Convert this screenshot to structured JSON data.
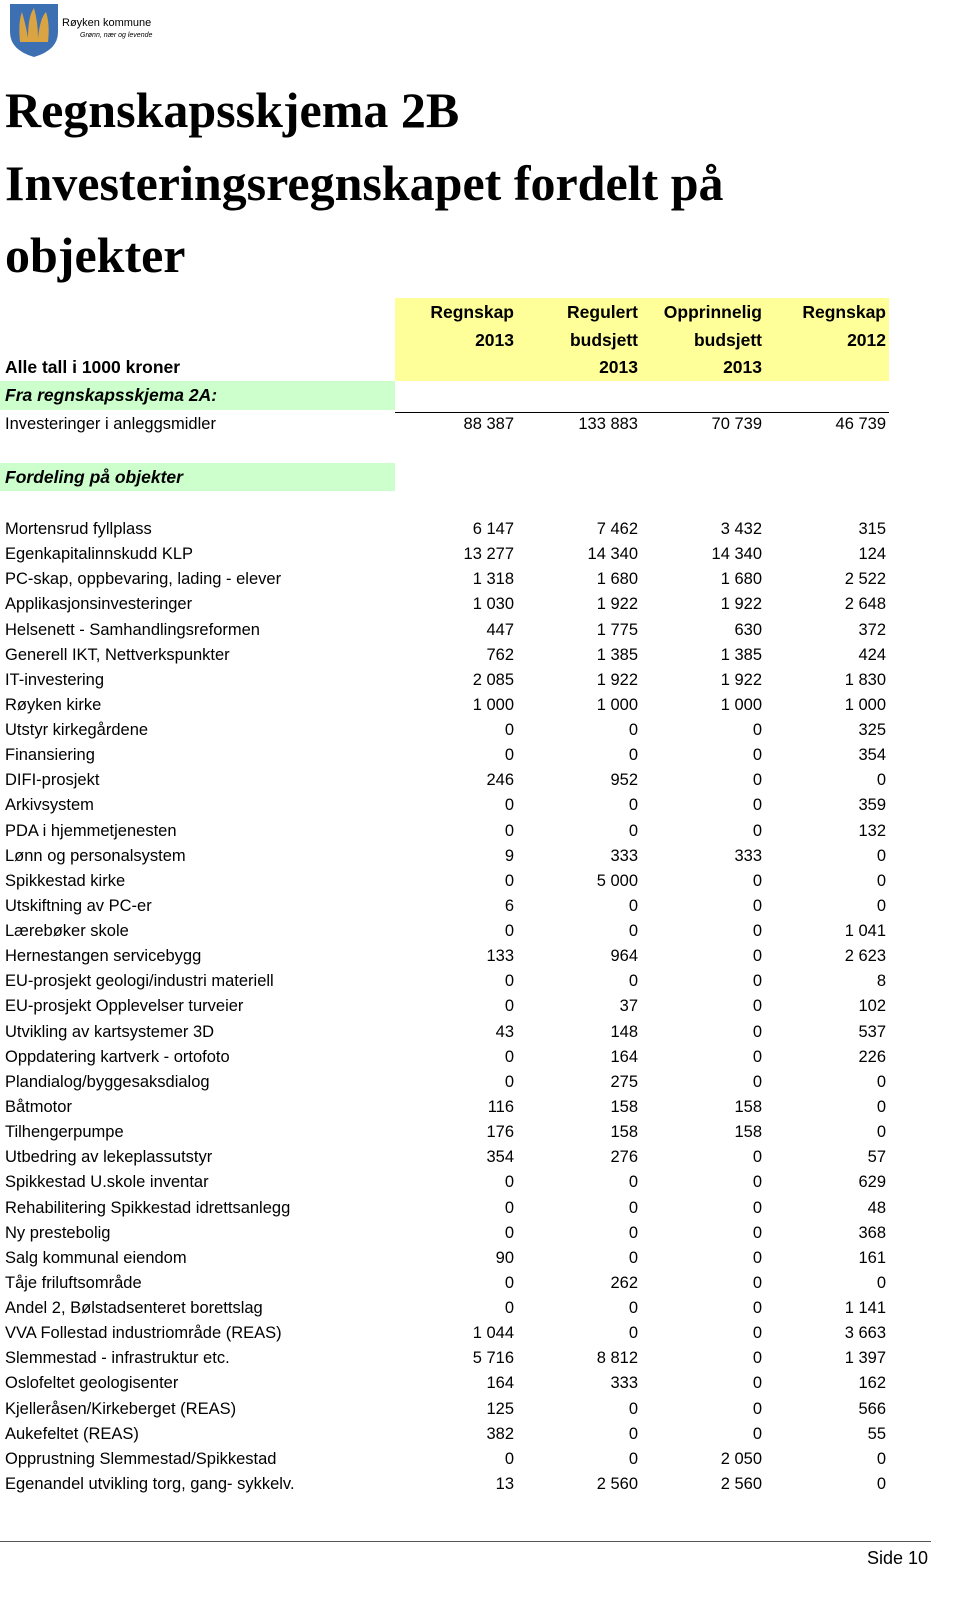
{
  "logo": {
    "name": "Røyken kommune",
    "tagline": "Grønn, nær og levende"
  },
  "title": [
    "Regnskapsskjema 2B",
    "Investeringsregnskapet fordelt på",
    "objekter"
  ],
  "table": {
    "columns": [
      [
        "Regnskap",
        "2013"
      ],
      [
        "Regulert",
        "budsjett",
        "2013"
      ],
      [
        "Opprinnelig",
        "budsjett",
        "2013"
      ],
      [
        "Regnskap",
        "2012"
      ]
    ],
    "unit_note": "Alle tall i 1000 kroner",
    "section_a": "Fra regnskapsskjema 2A:",
    "total_row": [
      "Investeringer i anleggsmidler",
      "88 387",
      "133 883",
      "70 739",
      "46 739"
    ],
    "section_b": "Fordeling på objekter",
    "rows": [
      [
        "Mortensrud fyllplass",
        "6 147",
        "7 462",
        "3 432",
        "315"
      ],
      [
        "Egenkapitalinnskudd KLP",
        "13 277",
        "14 340",
        "14 340",
        "124"
      ],
      [
        "PC-skap, oppbevaring, lading - elever",
        "1 318",
        "1 680",
        "1 680",
        "2 522"
      ],
      [
        "Applikasjonsinvesteringer",
        "1 030",
        "1 922",
        "1 922",
        "2 648"
      ],
      [
        "Helsenett - Samhandlingsreformen",
        "447",
        "1 775",
        "630",
        "372"
      ],
      [
        "Generell IKT, Nettverkspunkter",
        "762",
        "1 385",
        "1 385",
        "424"
      ],
      [
        "IT-investering",
        "2 085",
        "1 922",
        "1 922",
        "1 830"
      ],
      [
        "Røyken kirke",
        "1 000",
        "1 000",
        "1 000",
        "1 000"
      ],
      [
        "Utstyr kirkegårdene",
        "0",
        "0",
        "0",
        "325"
      ],
      [
        "Finansiering",
        "0",
        "0",
        "0",
        "354"
      ],
      [
        "DIFI-prosjekt",
        "246",
        "952",
        "0",
        "0"
      ],
      [
        "Arkivsystem",
        "0",
        "0",
        "0",
        "359"
      ],
      [
        "PDA i hjemmetjenesten",
        "0",
        "0",
        "0",
        "132"
      ],
      [
        "Lønn og personalsystem",
        "9",
        "333",
        "333",
        "0"
      ],
      [
        "Spikkestad kirke",
        "0",
        "5 000",
        "0",
        "0"
      ],
      [
        "Utskiftning av PC-er",
        "6",
        "0",
        "0",
        "0"
      ],
      [
        "Lærebøker skole",
        "0",
        "0",
        "0",
        "1 041"
      ],
      [
        "Hernestangen servicebygg",
        "133",
        "964",
        "0",
        "2 623"
      ],
      [
        "EU-prosjekt geologi/industri materiell",
        "0",
        "0",
        "0",
        "8"
      ],
      [
        "EU-prosjekt Opplevelser turveier",
        "0",
        "37",
        "0",
        "102"
      ],
      [
        "Utvikling av kartsystemer 3D",
        "43",
        "148",
        "0",
        "537"
      ],
      [
        "Oppdatering kartverk - ortofoto",
        "0",
        "164",
        "0",
        "226"
      ],
      [
        "Plandialog/byggesaksdialog",
        "0",
        "275",
        "0",
        "0"
      ],
      [
        "Båtmotor",
        "116",
        "158",
        "158",
        "0"
      ],
      [
        "Tilhengerpumpe",
        "176",
        "158",
        "158",
        "0"
      ],
      [
        "Utbedring av lekeplassutstyr",
        "354",
        "276",
        "0",
        "57"
      ],
      [
        "Spikkestad U.skole inventar",
        "0",
        "0",
        "0",
        "629"
      ],
      [
        "Rehabilitering Spikkestad idrettsanlegg",
        "0",
        "0",
        "0",
        "48"
      ],
      [
        "Ny prestebolig",
        "0",
        "0",
        "0",
        "368"
      ],
      [
        "Salg kommunal eiendom",
        "90",
        "0",
        "0",
        "161"
      ],
      [
        "Tåje friluftsområde",
        "0",
        "262",
        "0",
        "0"
      ],
      [
        "Andel 2, Bølstadsenteret borettslag",
        "0",
        "0",
        "0",
        "1 141"
      ],
      [
        "VVA Follestad industriområde (REAS)",
        "1 044",
        "0",
        "0",
        "3 663"
      ],
      [
        "Slemmestad - infrastruktur etc.",
        "5 716",
        "8 812",
        "0",
        "1 397"
      ],
      [
        "Oslofeltet geologisenter",
        "164",
        "333",
        "0",
        "162"
      ],
      [
        "Kjelleråsen/Kirkeberget (REAS)",
        "125",
        "0",
        "0",
        "566"
      ],
      [
        "Aukefeltet (REAS)",
        "382",
        "0",
        "0",
        "55"
      ],
      [
        "Opprustning Slemmestad/Spikkestad",
        "0",
        "0",
        "2 050",
        "0"
      ],
      [
        "Egenandel utvikling torg, gang- sykkelv.",
        "13",
        "2 560",
        "2 560",
        "0"
      ]
    ]
  },
  "footer": {
    "page": "Side 10"
  }
}
